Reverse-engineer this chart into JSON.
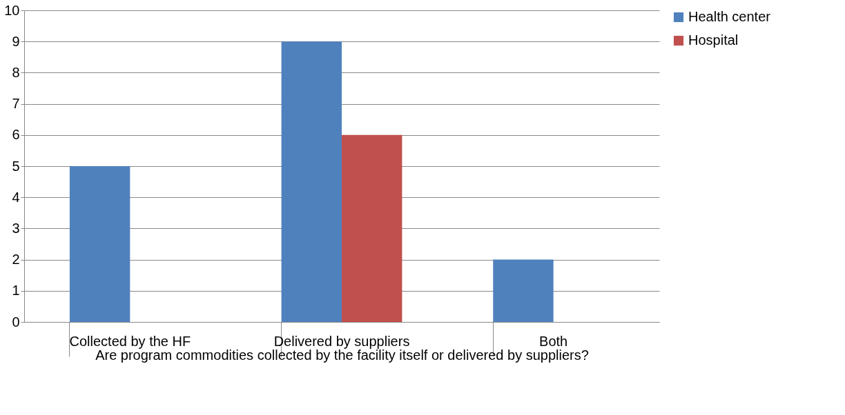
{
  "chart_data": {
    "type": "bar",
    "xlabel": "Are program commodities collected by the facility itself or delivered by suppliers?",
    "categories": [
      "Collected by  the HF",
      "Delivered by suppliers",
      "Both"
    ],
    "series": [
      {
        "name": "Health center",
        "color": "#4f81bd",
        "values": [
          5,
          9,
          2
        ]
      },
      {
        "name": "Hospital",
        "color": "#c0504d",
        "values": [
          null,
          6,
          null
        ]
      }
    ],
    "ylim": [
      0,
      10
    ],
    "yticks": [
      0,
      1,
      2,
      3,
      4,
      5,
      6,
      7,
      8,
      9,
      10
    ],
    "grid": "y",
    "legend": "right"
  }
}
